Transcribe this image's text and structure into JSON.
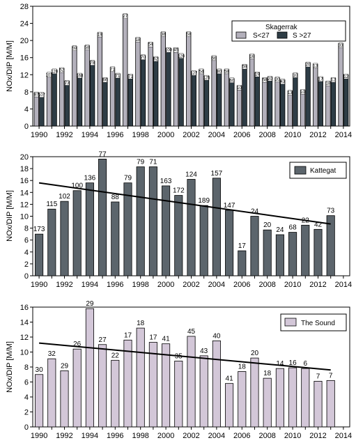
{
  "chart_data": [
    {
      "type": "bar",
      "ylabel": "NOx/DIP [M/M]",
      "ylim": [
        0,
        28
      ],
      "yticks": [
        0,
        4,
        8,
        12,
        16,
        20,
        24,
        28
      ],
      "categories": [
        "1990",
        "1991",
        "1992",
        "1993",
        "1994",
        "1995",
        "1996",
        "1997",
        "1998",
        "1999",
        "2000",
        "2001",
        "2002",
        "2003",
        "2004",
        "2005",
        "2006",
        "2007",
        "2008",
        "2009",
        "2010",
        "2011",
        "2012",
        "2013",
        "2014"
      ],
      "xtick_labels": [
        "1990",
        "1992",
        "1994",
        "1996",
        "1998",
        "2000",
        "2002",
        "2004",
        "2006",
        "2008",
        "2010",
        "2012",
        "2014"
      ],
      "legend": {
        "title": "Skagerrak",
        "position": "top-right"
      },
      "series": [
        {
          "name": "S<27",
          "color": "#b3b0bb",
          "values": [
            7.8,
            12.4,
            13.5,
            18.6,
            18.8,
            21.8,
            13.7,
            26.1,
            20.6,
            19.5,
            21.9,
            18.2,
            21.9,
            13.2,
            16.3,
            13.2,
            9.4,
            16.7,
            11.2,
            11.3,
            8.2,
            8.4,
            14.5,
            10.4,
            19.3
          ],
          "labels": [
            "87",
            "107",
            "52",
            "59",
            "58",
            "19",
            "71",
            "27",
            "18",
            "54",
            "38",
            "45",
            "58",
            "54",
            "66",
            "58",
            "10",
            "16",
            "58",
            "20",
            "13",
            "10",
            "13",
            "18",
            "33"
          ]
        },
        {
          "name": "S >27",
          "color": "#2e3d46",
          "values": [
            7.7,
            13.2,
            10.5,
            12.2,
            15.2,
            11.2,
            12.2,
            12.0,
            16.5,
            16.1,
            18.2,
            16.8,
            12.8,
            11.7,
            13.2,
            11.1,
            14.3,
            12.5,
            11.5,
            10.8,
            12.3,
            14.8,
            11.4,
            11.2,
            12.0
          ],
          "labels": [
            "107",
            "120",
            "73",
            "168",
            "78",
            "66",
            "71",
            "71",
            "70",
            "62",
            "100",
            "120",
            "127",
            "125",
            "80",
            "60",
            "59",
            "19",
            "20",
            "43",
            "10",
            "20",
            "17",
            "12",
            "12"
          ]
        }
      ]
    },
    {
      "type": "bar",
      "ylabel": "NOx/DIP [M/M]",
      "ylim": [
        0,
        20
      ],
      "yticks": [
        0,
        2,
        4,
        6,
        8,
        10,
        12,
        14,
        16,
        18,
        20
      ],
      "categories": [
        "1990",
        "1991",
        "1992",
        "1993",
        "1994",
        "1995",
        "1996",
        "1997",
        "1998",
        "1999",
        "2000",
        "2001",
        "2002",
        "2003",
        "2004",
        "2005",
        "2006",
        "2007",
        "2008",
        "2009",
        "2010",
        "2011",
        "2012",
        "2013"
      ],
      "xtick_labels": [
        "1990",
        "1992",
        "1994",
        "1996",
        "1998",
        "2000",
        "2002",
        "2004",
        "2006",
        "2008",
        "2010",
        "2012",
        "2014"
      ],
      "legend": {
        "position": "top-right"
      },
      "series": [
        {
          "name": "Kattegat",
          "color": "#5c656c",
          "values": [
            7.0,
            11.2,
            12.5,
            14.3,
            15.6,
            19.6,
            12.4,
            15.6,
            18.3,
            18.3,
            15.1,
            13.5,
            16.2,
            11.8,
            16.4,
            11.0,
            4.2,
            10.0,
            7.7,
            6.9,
            7.3,
            8.5,
            7.8,
            10.1
          ],
          "labels": [
            "173",
            "115",
            "102",
            "100",
            "136",
            "77",
            "88",
            "79",
            "79",
            "71",
            "163",
            "172",
            "124",
            "189",
            "157",
            "147",
            "17",
            "24",
            "20",
            "24",
            "68",
            "22",
            "42",
            "73"
          ]
        }
      ],
      "trend": {
        "start": [
          1990,
          15.6
        ],
        "end": [
          2013,
          8.7
        ]
      }
    },
    {
      "type": "bar",
      "ylabel": "NOx/DIP [M/M]",
      "ylim": [
        0,
        16
      ],
      "yticks": [
        0,
        2,
        4,
        6,
        8,
        10,
        12,
        14,
        16
      ],
      "categories": [
        "1990",
        "1991",
        "1992",
        "1993",
        "1994",
        "1995",
        "1996",
        "1997",
        "1998",
        "1999",
        "2000",
        "2001",
        "2002",
        "2003",
        "2004",
        "2005",
        "2006",
        "2007",
        "2008",
        "2009",
        "2010",
        "2011",
        "2012",
        "2013"
      ],
      "xtick_labels": [
        "1990",
        "1992",
        "1994",
        "1996",
        "1998",
        "2000",
        "2002",
        "2004",
        "2006",
        "2008",
        "2010",
        "2012",
        "2014"
      ],
      "legend": {
        "position": "top-right"
      },
      "series": [
        {
          "name": "The Sound",
          "color": "#d3c7d8",
          "values": [
            7.0,
            9.1,
            7.5,
            10.4,
            15.8,
            11.0,
            8.9,
            11.6,
            13.2,
            11.3,
            11.1,
            8.8,
            12.1,
            9.5,
            11.5,
            5.8,
            7.4,
            9.2,
            6.5,
            7.8,
            7.9,
            7.8,
            6.1,
            6.2
          ],
          "labels": [
            "30",
            "32",
            "29",
            "26",
            "29",
            "27",
            "22",
            "17",
            "18",
            "17",
            "41",
            "35",
            "45",
            "43",
            "40",
            "41",
            "18",
            "20",
            "18",
            "14",
            "16",
            "6",
            "7",
            "7"
          ]
        }
      ],
      "trend": {
        "start": [
          1990,
          11.2
        ],
        "end": [
          2013,
          7.6
        ]
      }
    }
  ]
}
